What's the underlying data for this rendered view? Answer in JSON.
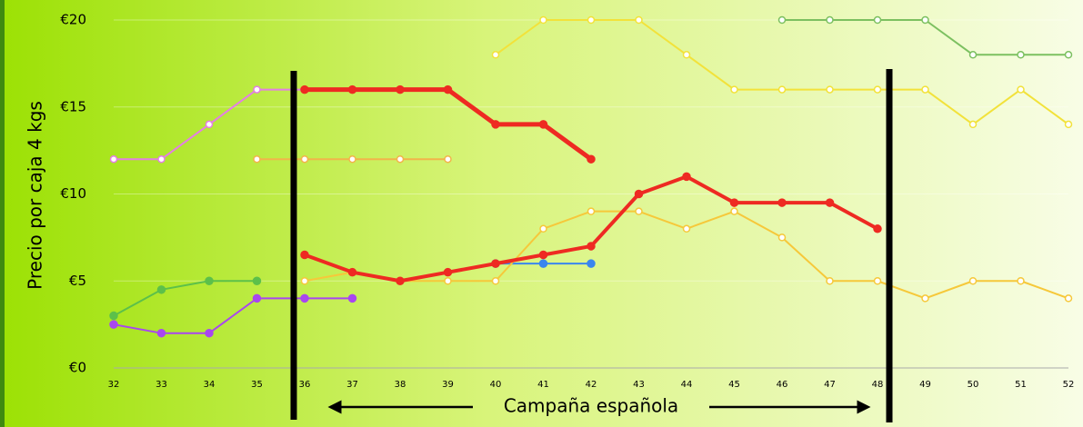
{
  "chart_data": {
    "type": "line",
    "ylabel": "Precio por caja 4 kgs",
    "annotation": "Campaña española",
    "categories": [
      "32",
      "33",
      "34",
      "35",
      "36",
      "37",
      "38",
      "39",
      "40",
      "41",
      "42",
      "43",
      "44",
      "45",
      "46",
      "47",
      "48",
      "49",
      "50",
      "51",
      "52"
    ],
    "ylim": [
      0,
      20
    ],
    "yticks": [
      {
        "value": 0,
        "label": "€0"
      },
      {
        "value": 5,
        "label": "€5"
      },
      {
        "value": 10,
        "label": "€10"
      },
      {
        "value": 15,
        "label": "€15"
      },
      {
        "value": 20,
        "label": "€20"
      }
    ],
    "grid": true,
    "series": [
      {
        "color": "#e47ee4",
        "width": 2,
        "marker": "hollow",
        "values": [
          12,
          12,
          14,
          16,
          16,
          null,
          null,
          null,
          null,
          null,
          null,
          null,
          null,
          null,
          null,
          null,
          null,
          null,
          null,
          null,
          null
        ]
      },
      {
        "color": "#a946f0",
        "width": 2,
        "marker": "filled",
        "values": [
          2.5,
          2,
          2,
          4,
          4,
          4,
          null,
          null,
          null,
          null,
          null,
          null,
          null,
          null,
          null,
          null,
          null,
          null,
          null,
          null,
          null
        ]
      },
      {
        "color": "#5cc04a",
        "width": 2,
        "marker": "filled",
        "values": [
          3,
          4.5,
          5,
          5,
          null,
          null,
          null,
          null,
          null,
          null,
          null,
          null,
          null,
          null,
          null,
          null,
          null,
          null,
          null,
          null,
          null
        ]
      },
      {
        "color": "#f2b44a",
        "width": 2,
        "marker": "hollow",
        "values": [
          null,
          null,
          null,
          12,
          12,
          12,
          12,
          12,
          null,
          null,
          null,
          null,
          null,
          null,
          null,
          null,
          null,
          null,
          null,
          null,
          null
        ]
      },
      {
        "color": "#ee2a22",
        "width": 5,
        "marker": "filled",
        "values": [
          null,
          null,
          null,
          null,
          16,
          16,
          16,
          16,
          14,
          14,
          12,
          null,
          null,
          null,
          null,
          null,
          null,
          null,
          null,
          null,
          null
        ]
      },
      {
        "color": "#3a86ee",
        "width": 2,
        "marker": "filled",
        "values": [
          null,
          null,
          null,
          null,
          null,
          null,
          null,
          null,
          6,
          6,
          6,
          null,
          null,
          null,
          null,
          null,
          null,
          null,
          null,
          null,
          null
        ]
      },
      {
        "color": "#f6c83a",
        "width": 2,
        "marker": "hollow",
        "values": [
          null,
          null,
          null,
          null,
          5,
          5.5,
          5,
          5,
          5,
          8,
          9,
          9,
          8,
          9,
          7.5,
          5,
          5,
          4,
          5,
          5,
          4
        ]
      },
      {
        "color": "#ee2a22",
        "width": 4,
        "marker": "filled",
        "values": [
          null,
          null,
          null,
          null,
          6.5,
          5.5,
          5,
          5.5,
          6,
          6.5,
          7,
          10,
          11,
          9.5,
          9.5,
          9.5,
          8,
          null,
          null,
          null,
          null
        ]
      },
      {
        "color": "#f2e23a",
        "width": 2,
        "marker": "hollow",
        "values": [
          null,
          null,
          null,
          null,
          null,
          null,
          null,
          null,
          18,
          20,
          20,
          20,
          18,
          16,
          16,
          16,
          16,
          16,
          14,
          16,
          14
        ]
      },
      {
        "color": "#7cc060",
        "width": 2,
        "marker": "hollow",
        "values": [
          null,
          null,
          null,
          null,
          null,
          null,
          null,
          null,
          null,
          null,
          null,
          null,
          null,
          null,
          20,
          20,
          20,
          20,
          18,
          18,
          18
        ]
      }
    ]
  }
}
